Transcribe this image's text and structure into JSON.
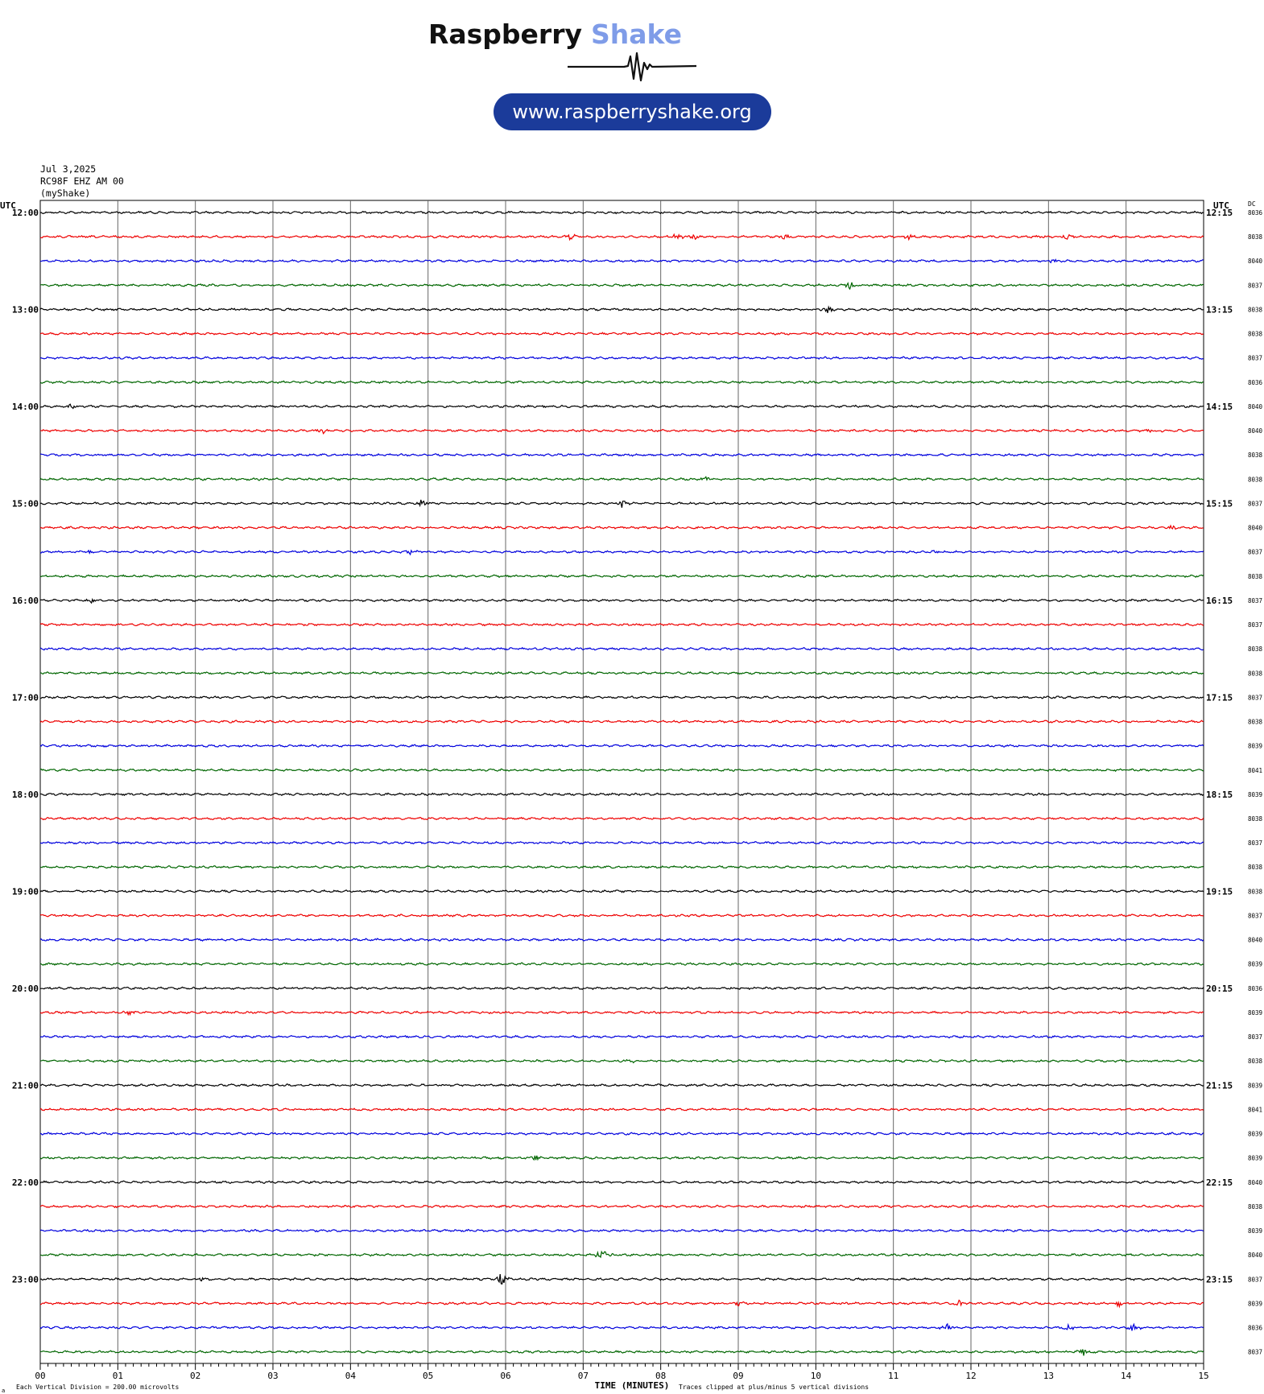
{
  "header": {
    "brand_word1": "Raspberry",
    "brand_word2": "Shake",
    "url": "www.raspberryshake.org"
  },
  "station": {
    "date": "Jul 3,2025",
    "channel": "RC98F EHZ AM 00",
    "network": "(myShake)"
  },
  "labels": {
    "utc_left": "UTC",
    "utc_right": "UTC",
    "dc": "DC",
    "xlabel": "TIME (MINUTES)",
    "scale_note": "Each Vertical Division =  200.00 microvolts",
    "clip_note": "Traces clipped at plus/minus 5 vertical divisions",
    "corner_mark": "a"
  },
  "colors": {
    "trace_cycle": [
      "#000000",
      "#ee0000",
      "#0000dd",
      "#006600"
    ],
    "brand_dark": "#111111",
    "brand_light": "#7f9ce8",
    "pill": "#1b3b9a",
    "grid": "#555555"
  },
  "chart_data": {
    "type": "line",
    "title": "",
    "xlabel": "TIME (MINUTES)",
    "xlim": [
      0,
      15
    ],
    "x_ticks": [
      "00",
      "01",
      "02",
      "03",
      "04",
      "05",
      "06",
      "07",
      "08",
      "09",
      "10",
      "11",
      "12",
      "13",
      "14",
      "15"
    ],
    "row_minutes": 15,
    "left_hour_labels": [
      "12:00",
      "13:00",
      "14:00",
      "15:00",
      "16:00",
      "17:00",
      "18:00",
      "19:00",
      "20:00",
      "21:00",
      "22:00",
      "23:00"
    ],
    "right_hour_labels": [
      "12:15",
      "13:15",
      "14:15",
      "15:15",
      "16:15",
      "17:15",
      "18:15",
      "19:15",
      "20:15",
      "21:15",
      "22:15",
      "23:15"
    ],
    "dc_offsets": [
      "8036",
      "8038",
      "8040",
      "8037",
      "8038",
      "8038",
      "8037",
      "8036",
      "8040",
      "8040",
      "8038",
      "8038",
      "8037",
      "8040",
      "8037",
      "8038",
      "8037",
      "8037",
      "8038",
      "8038",
      "8037",
      "8038",
      "8039",
      "8041",
      "8039",
      "8038",
      "8037",
      "8038",
      "8038",
      "8037",
      "8040",
      "8039",
      "8036",
      "8039",
      "8037",
      "8038",
      "8039",
      "8041",
      "8039",
      "8039",
      "8040",
      "8038",
      "8039",
      "8040",
      "8037",
      "8039",
      "8036",
      "8037"
    ],
    "events": [
      {
        "row": 1,
        "minute": 6.85,
        "amp": 4
      },
      {
        "row": 1,
        "minute": 8.2,
        "amp": 4
      },
      {
        "row": 1,
        "minute": 8.45,
        "amp": 4
      },
      {
        "row": 1,
        "minute": 9.6,
        "amp": 3
      },
      {
        "row": 1,
        "minute": 11.2,
        "amp": 2
      },
      {
        "row": 1,
        "minute": 13.25,
        "amp": 4
      },
      {
        "row": 2,
        "minute": 13.05,
        "amp": 2
      },
      {
        "row": 3,
        "minute": 10.45,
        "amp": 4
      },
      {
        "row": 4,
        "minute": 10.15,
        "amp": 4
      },
      {
        "row": 8,
        "minute": 0.4,
        "amp": 2
      },
      {
        "row": 9,
        "minute": 3.65,
        "amp": 3
      },
      {
        "row": 9,
        "minute": 14.35,
        "amp": 2
      },
      {
        "row": 11,
        "minute": 8.6,
        "amp": 3
      },
      {
        "row": 12,
        "minute": 4.9,
        "amp": 4
      },
      {
        "row": 12,
        "minute": 7.5,
        "amp": 4
      },
      {
        "row": 13,
        "minute": 14.6,
        "amp": 2
      },
      {
        "row": 14,
        "minute": 0.65,
        "amp": 2
      },
      {
        "row": 14,
        "minute": 4.8,
        "amp": 3
      },
      {
        "row": 14,
        "minute": 11.55,
        "amp": 2
      },
      {
        "row": 16,
        "minute": 0.65,
        "amp": 2
      },
      {
        "row": 33,
        "minute": 1.15,
        "amp": 2
      },
      {
        "row": 35,
        "minute": 7.6,
        "amp": 2
      },
      {
        "row": 39,
        "minute": 6.4,
        "amp": 3
      },
      {
        "row": 43,
        "minute": 7.25,
        "amp": 7
      },
      {
        "row": 44,
        "minute": 2.1,
        "amp": 2
      },
      {
        "row": 44,
        "minute": 5.95,
        "amp": 6
      },
      {
        "row": 45,
        "minute": 9.0,
        "amp": 2
      },
      {
        "row": 45,
        "minute": 11.85,
        "amp": 4
      },
      {
        "row": 45,
        "minute": 13.9,
        "amp": 3
      },
      {
        "row": 46,
        "minute": 11.7,
        "amp": 3
      },
      {
        "row": 46,
        "minute": 13.25,
        "amp": 3
      },
      {
        "row": 46,
        "minute": 14.1,
        "amp": 4
      },
      {
        "row": 47,
        "minute": 13.45,
        "amp": 4
      }
    ]
  }
}
